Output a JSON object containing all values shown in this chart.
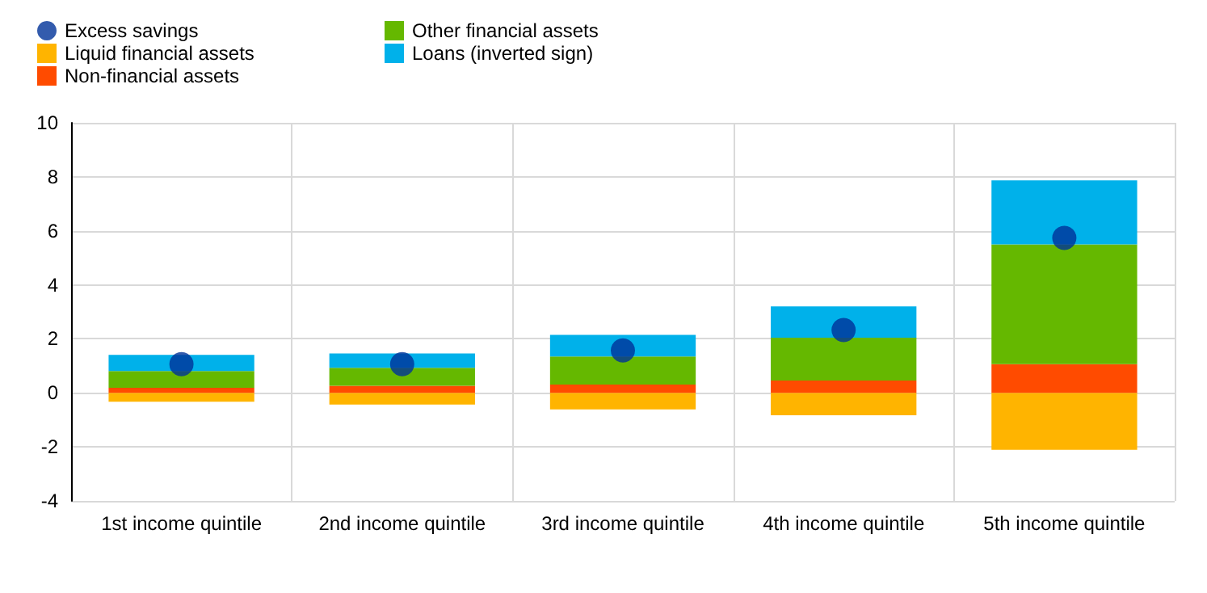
{
  "chart_data": {
    "type": "bar",
    "stacked": true,
    "categories": [
      "1st income quintile",
      "2nd income quintile",
      "3rd income quintile",
      "4th income quintile",
      "5th income quintile"
    ],
    "series": [
      {
        "name": "Liquid financial assets",
        "color": "#ffb400",
        "values": [
          -0.33,
          -0.43,
          -0.61,
          -0.83,
          -2.11
        ]
      },
      {
        "name": "Non-financial assets",
        "color": "#ff4b00",
        "values": [
          0.19,
          0.26,
          0.31,
          0.46,
          1.06
        ]
      },
      {
        "name": "Other financial assets",
        "color": "#65b800",
        "values": [
          0.62,
          0.67,
          1.04,
          1.58,
          4.44
        ]
      },
      {
        "name": "Loans (inverted sign)",
        "color": "#00b1ea",
        "values": [
          0.6,
          0.53,
          0.8,
          1.16,
          2.37
        ]
      },
      {
        "name": "Excess savings",
        "type": "scatter",
        "color": "#003299",
        "values": [
          1.06,
          1.06,
          1.57,
          2.33,
          5.74
        ]
      }
    ],
    "ylim": [
      -4,
      10
    ],
    "yticks": [
      -4,
      -2,
      0,
      2,
      4,
      6,
      8,
      10
    ],
    "grid": true,
    "legend": "top left",
    "marker": "circle"
  }
}
